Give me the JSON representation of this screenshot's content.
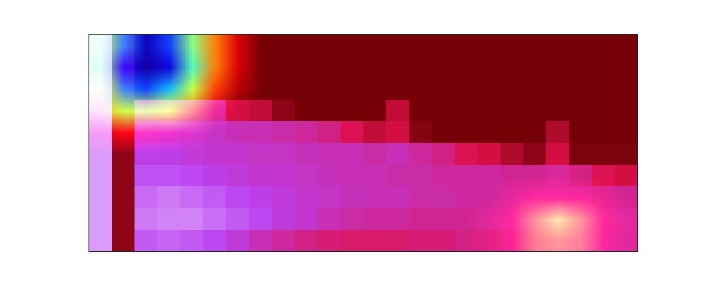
{
  "chart_data": {
    "type": "heatmap",
    "tick_labels": false,
    "cells": [
      [
        0.85,
        0.1,
        0.03,
        0.03,
        0.03,
        0.03,
        0.03,
        0.03,
        0.03,
        0.03,
        0.03,
        0.03,
        0.03,
        0.03,
        0.03,
        0.03,
        0.03,
        0.03,
        0.03,
        0.03,
        0.03,
        0.03,
        0.03,
        0.03
      ],
      [
        0.85,
        0.1,
        0.03,
        0.03,
        0.03,
        0.03,
        0.03,
        0.03,
        0.03,
        0.03,
        0.03,
        0.03,
        0.03,
        0.03,
        0.03,
        0.03,
        0.03,
        0.03,
        0.03,
        0.03,
        0.03,
        0.03,
        0.03,
        0.03
      ],
      [
        0.85,
        0.1,
        0.03,
        0.03,
        0.03,
        0.03,
        0.03,
        0.03,
        0.03,
        0.03,
        0.03,
        0.03,
        0.03,
        0.03,
        0.03,
        0.03,
        0.03,
        0.03,
        0.03,
        0.03,
        0.03,
        0.03,
        0.03,
        0.03
      ],
      [
        0.85,
        0.1,
        0.5,
        0.5,
        0.5,
        0.5,
        0.3,
        0.25,
        0.1,
        0.03,
        0.03,
        0.03,
        0.03,
        0.25,
        0.03,
        0.03,
        0.03,
        0.03,
        0.03,
        0.03,
        0.03,
        0.03,
        0.03,
        0.03
      ],
      [
        0.85,
        0.1,
        0.6,
        0.6,
        0.6,
        0.58,
        0.55,
        0.55,
        0.52,
        0.5,
        0.45,
        0.35,
        0.25,
        0.3,
        0.08,
        0.03,
        0.03,
        0.03,
        0.03,
        0.03,
        0.2,
        0.03,
        0.03,
        0.03
      ],
      [
        0.85,
        0.1,
        0.65,
        0.65,
        0.62,
        0.6,
        0.6,
        0.58,
        0.58,
        0.56,
        0.55,
        0.55,
        0.52,
        0.55,
        0.5,
        0.45,
        0.35,
        0.3,
        0.2,
        0.1,
        0.3,
        0.05,
        0.05,
        0.05
      ],
      [
        0.85,
        0.1,
        0.7,
        0.7,
        0.68,
        0.65,
        0.62,
        0.6,
        0.6,
        0.58,
        0.56,
        0.55,
        0.55,
        0.52,
        0.52,
        0.5,
        0.5,
        0.5,
        0.48,
        0.48,
        0.5,
        0.45,
        0.35,
        0.3
      ],
      [
        0.85,
        0.1,
        0.75,
        0.78,
        0.75,
        0.72,
        0.68,
        0.65,
        0.62,
        0.6,
        0.58,
        0.56,
        0.55,
        0.55,
        0.52,
        0.52,
        0.5,
        0.5,
        0.5,
        0.5,
        0.5,
        0.5,
        0.48,
        0.48
      ],
      [
        0.85,
        0.1,
        0.78,
        0.8,
        0.8,
        0.76,
        0.72,
        0.68,
        0.62,
        0.6,
        0.55,
        0.52,
        0.5,
        0.5,
        0.48,
        0.48,
        0.48,
        0.5,
        0.5,
        0.5,
        0.52,
        0.5,
        0.5,
        0.5
      ],
      [
        0.85,
        0.1,
        0.72,
        0.74,
        0.72,
        0.68,
        0.62,
        0.55,
        0.5,
        0.45,
        0.42,
        0.4,
        0.4,
        0.4,
        0.42,
        0.42,
        0.45,
        0.45,
        0.48,
        0.48,
        0.5,
        0.5,
        0.5,
        0.5
      ]
    ],
    "overlay_cells": [
      [
        0.45,
        0.7,
        0.9,
        0.75,
        0.5,
        0.3,
        0.15,
        0,
        0,
        0,
        0,
        0,
        0,
        0,
        0,
        0,
        0,
        0,
        0,
        0,
        0,
        0,
        0,
        0
      ],
      [
        0.5,
        0.8,
        0.95,
        0.85,
        0.55,
        0.3,
        0.15,
        0,
        0,
        0,
        0,
        0,
        0,
        0,
        0,
        0,
        0,
        0,
        0,
        0,
        0,
        0,
        0,
        0
      ],
      [
        0.4,
        0.7,
        0.75,
        0.65,
        0.45,
        0.25,
        0.1,
        0,
        0,
        0,
        0,
        0,
        0,
        0,
        0,
        0,
        0,
        0,
        0,
        0,
        0,
        0,
        0,
        0
      ],
      [
        0.35,
        0.45,
        0.45,
        0.4,
        0.3,
        0.15,
        0,
        0,
        0,
        0,
        0,
        0,
        0,
        0,
        0,
        0,
        0,
        0,
        0,
        0,
        0,
        0,
        0,
        0
      ],
      [
        0.15,
        0.2,
        0.2,
        0.15,
        0.1,
        0,
        0,
        0,
        0,
        0,
        0,
        0,
        0,
        0,
        0,
        0,
        0,
        0,
        0,
        0,
        0,
        0,
        0,
        0
      ],
      [
        0,
        0,
        0,
        0,
        0,
        0,
        0,
        0,
        0,
        0,
        0,
        0,
        0,
        0,
        0,
        0,
        0,
        0,
        0,
        0,
        0,
        0,
        0,
        0
      ],
      [
        0,
        0,
        0,
        0,
        0,
        0,
        0,
        0,
        0,
        0,
        0,
        0,
        0,
        0,
        0,
        0,
        0,
        0,
        0,
        0,
        0.08,
        0,
        0,
        0
      ],
      [
        0,
        0,
        0,
        0,
        0,
        0,
        0,
        0,
        0,
        0,
        0,
        0,
        0,
        0,
        0,
        0,
        0,
        0,
        0.12,
        0.2,
        0.2,
        0.2,
        0.12,
        0
      ],
      [
        0,
        0,
        0,
        0,
        0,
        0,
        0,
        0,
        0,
        0,
        0,
        0,
        0,
        0,
        0,
        0,
        0,
        0.1,
        0.2,
        0.3,
        0.38,
        0.3,
        0.2,
        0.1
      ],
      [
        0,
        0,
        0,
        0,
        0,
        0,
        0,
        0,
        0,
        0,
        0,
        0,
        0,
        0,
        0,
        0,
        0,
        0.08,
        0.18,
        0.28,
        0.3,
        0.28,
        0.18,
        0.08
      ]
    ]
  }
}
